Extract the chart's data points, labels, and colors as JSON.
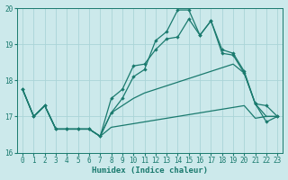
{
  "xlabel": "Humidex (Indice chaleur)",
  "bg_color": "#cce9eb",
  "grid_color": "#aad4d7",
  "line_color": "#1a7a6e",
  "xlim": [
    -0.5,
    23.5
  ],
  "ylim": [
    16,
    20
  ],
  "yticks": [
    16,
    17,
    18,
    19,
    20
  ],
  "xticks": [
    0,
    1,
    2,
    3,
    4,
    5,
    6,
    7,
    8,
    9,
    10,
    11,
    12,
    13,
    14,
    15,
    16,
    17,
    18,
    19,
    20,
    21,
    22,
    23
  ],
  "s1_x": [
    0,
    1,
    2,
    3,
    4,
    5,
    6,
    7,
    8,
    9,
    10,
    11,
    12,
    13,
    14,
    15,
    16,
    17,
    18,
    19,
    20,
    21,
    22,
    23
  ],
  "s1_y": [
    17.75,
    17.0,
    17.3,
    16.65,
    16.65,
    16.65,
    16.65,
    16.45,
    16.7,
    16.75,
    16.8,
    16.85,
    16.9,
    16.95,
    17.0,
    17.05,
    17.1,
    17.15,
    17.2,
    17.25,
    17.3,
    16.95,
    17.0,
    17.0
  ],
  "s2_x": [
    0,
    1,
    2,
    3,
    4,
    5,
    6,
    7,
    8,
    9,
    10,
    11,
    12,
    13,
    14,
    15,
    16,
    17,
    18,
    19,
    20,
    21,
    22,
    23
  ],
  "s2_y": [
    17.75,
    17.0,
    17.3,
    16.65,
    16.65,
    16.65,
    16.65,
    16.45,
    17.1,
    17.3,
    17.5,
    17.65,
    17.75,
    17.85,
    17.95,
    18.05,
    18.15,
    18.25,
    18.35,
    18.45,
    18.2,
    17.35,
    17.0,
    17.0
  ],
  "s3_x": [
    0,
    1,
    2,
    3,
    4,
    5,
    6,
    7,
    8,
    9,
    10,
    11,
    12,
    13,
    14,
    15,
    16,
    17,
    18,
    19,
    20,
    21,
    22,
    23
  ],
  "s3_y": [
    17.75,
    17.0,
    17.3,
    16.65,
    16.65,
    16.65,
    16.65,
    16.45,
    17.5,
    17.75,
    18.4,
    18.45,
    18.85,
    19.15,
    19.2,
    19.7,
    19.25,
    19.65,
    18.75,
    18.7,
    18.2,
    17.35,
    17.3,
    17.0
  ],
  "s4_x": [
    0,
    1,
    2,
    3,
    4,
    5,
    6,
    7,
    8,
    9,
    10,
    11,
    12,
    13,
    14,
    15,
    16,
    17,
    18,
    19,
    20,
    21,
    22,
    23
  ],
  "s4_y": [
    17.75,
    17.0,
    17.3,
    16.65,
    16.65,
    16.65,
    16.65,
    16.45,
    17.1,
    17.5,
    18.1,
    18.3,
    19.1,
    19.35,
    19.95,
    19.95,
    19.25,
    19.65,
    18.85,
    18.75,
    18.25,
    17.35,
    16.85,
    17.0
  ]
}
